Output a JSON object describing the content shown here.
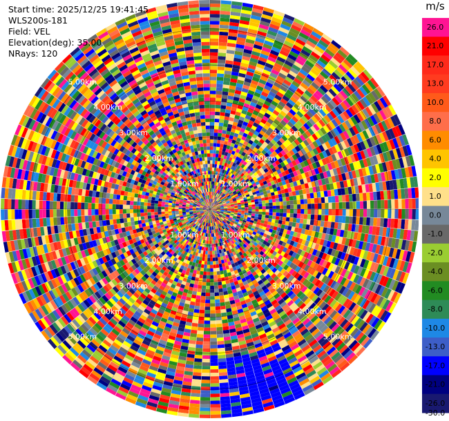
{
  "header": {
    "start_time": "Start time: 2025/12/25 19:41:45",
    "instrument": "WLS200s-181",
    "field": "Field: VEL",
    "elevation": "Elevation(deg): 35.00",
    "nrays": "NRays: 120"
  },
  "chart_data": {
    "type": "polar-ppi",
    "field": "VEL",
    "nrays": 120,
    "range_labels": [
      "1.00km",
      "2.00km",
      "3.00km",
      "4.00km",
      "5.00km"
    ],
    "range_label_values": [
      1,
      2,
      3,
      4,
      5
    ],
    "max_range_km": 5.8,
    "colorbar": {
      "unit": "m/s",
      "tick_labels": [
        "26.0",
        "21.0",
        "17.0",
        "13.0",
        "10.0",
        "8.0",
        "6.0",
        "4.0",
        "2.0",
        "1.0",
        "0.0",
        "-1.0",
        "-2.0",
        "-4.0",
        "-6.0",
        "-8.0",
        "-10.0",
        "-13.0",
        "-17.0",
        "-21.0",
        "-26.0",
        "-30.0"
      ],
      "colors": [
        "#ff1493",
        "#ff0000",
        "#ff2a1a",
        "#ff3b1f",
        "#ff5a1a",
        "#ff6e4a",
        "#ff8c00",
        "#ffc400",
        "#ffff00",
        "#ffe08a",
        "#778899",
        "#696969",
        "#9acd32",
        "#6b8e23",
        "#228b22",
        "#2e8b57",
        "#1e88e5",
        "#3d5ec8",
        "#0000ff",
        "#000080",
        "#191970"
      ]
    }
  }
}
